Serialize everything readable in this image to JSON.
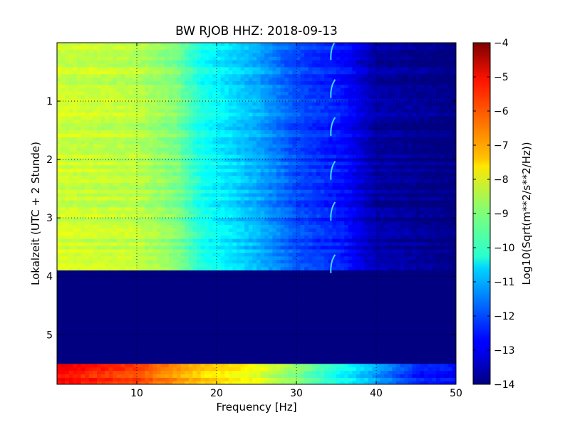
{
  "chart_data": {
    "type": "heatmap",
    "title": "BW RJOB HHZ: 2018-09-13",
    "xlabel": "Frequency [Hz]",
    "ylabel": "Lokalzeit (UTC + 2 Stunde)",
    "xlim": [
      0,
      50
    ],
    "ylim": [
      5.85,
      0
    ],
    "x_ticks": [
      10,
      20,
      30,
      40,
      50
    ],
    "x_tick_labels": [
      "10",
      "20",
      "30",
      "40",
      "50"
    ],
    "y_ticks": [
      1,
      2,
      3,
      4,
      5
    ],
    "y_tick_labels": [
      "1",
      "2",
      "3",
      "4",
      "5"
    ],
    "grid": true,
    "colormap": "jet",
    "colorbar": {
      "label": "Log10(Sqrt(m**2/s**2/Hz))",
      "range": [
        -14,
        -4
      ],
      "ticks": [
        -4,
        -5,
        -6,
        -7,
        -8,
        -9,
        -10,
        -11,
        -12,
        -13,
        -14
      ],
      "tick_labels": [
        "−4",
        "−5",
        "−6",
        "−7",
        "−8",
        "−9",
        "−10",
        "−11",
        "−12",
        "−13",
        "−14"
      ]
    },
    "bands": [
      {
        "from_h": 0,
        "to_h": 3.9,
        "description": "normal",
        "profile": [
          [
            0,
            -8.2
          ],
          [
            10,
            -8.4
          ],
          [
            15,
            -9.0
          ],
          [
            18,
            -10.0
          ],
          [
            25,
            -11.0
          ],
          [
            30,
            -12.0
          ],
          [
            36,
            -12.6
          ],
          [
            40,
            -13.6
          ],
          [
            50,
            -14
          ]
        ]
      },
      {
        "from_h": 3.9,
        "to_h": 5.5,
        "description": "no data",
        "profile": [
          [
            0,
            -14
          ],
          [
            50,
            -14
          ]
        ]
      },
      {
        "from_h": 5.5,
        "to_h": 5.85,
        "description": "high",
        "profile": [
          [
            0,
            -5.3
          ],
          [
            10,
            -6.0
          ],
          [
            18,
            -7.3
          ],
          [
            25,
            -8.0
          ],
          [
            32,
            -9.4
          ],
          [
            38,
            -10.7
          ],
          [
            45,
            -12.5
          ],
          [
            50,
            -12.8
          ]
        ]
      }
    ],
    "arc_features": {
      "freq_hz": 34.5,
      "times_h": [
        0.15,
        0.8,
        1.45,
        2.2,
        2.9,
        3.8
      ]
    }
  }
}
